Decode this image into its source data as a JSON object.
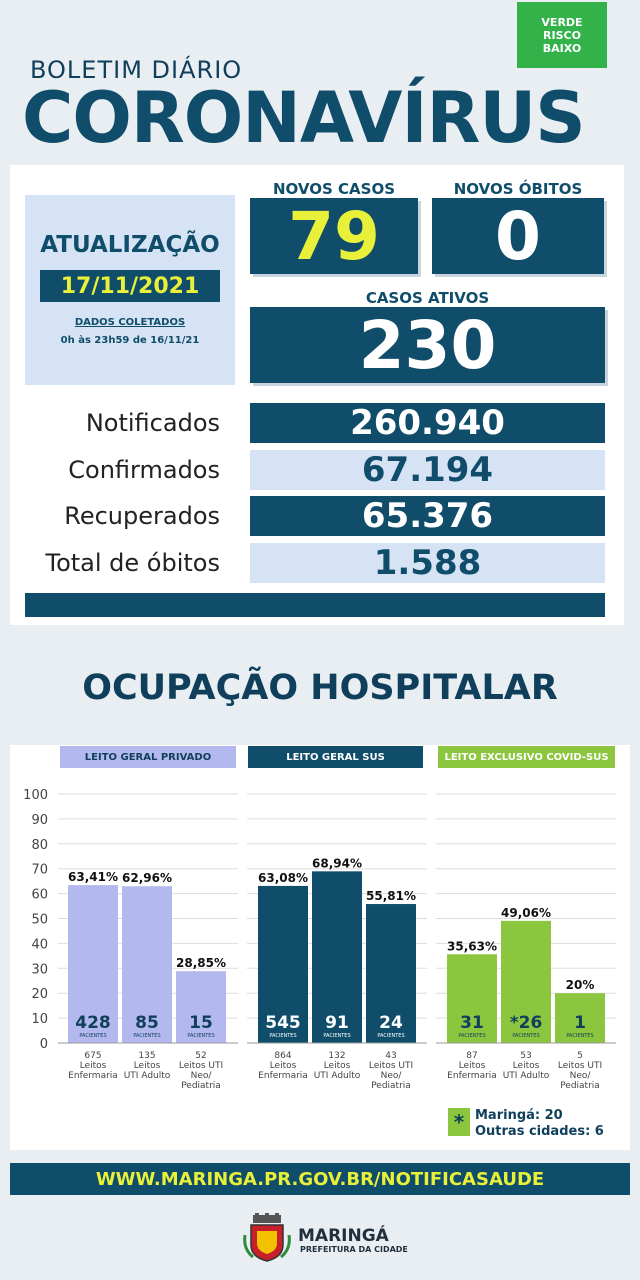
{
  "risk_badge": {
    "line1": "VERDE",
    "line2": "RISCO",
    "line3": "BAIXO",
    "color": "#33b24a"
  },
  "header": {
    "subtitle": "BOLETIM DIÁRIO",
    "title": "CORONAVÍRUS"
  },
  "update": {
    "label": "ATUALIZAÇÃO",
    "date": "17/11/2021",
    "collected_label": "DADOS COLETADOS",
    "collected_range": "0h às 23h59 de 16/11/21"
  },
  "stats": {
    "novos_casos_label": "NOVOS CASOS",
    "novos_casos": "79",
    "novos_obitos_label": "NOVOS ÓBITOS",
    "novos_obitos": "0",
    "casos_ativos_label": "CASOS ATIVOS",
    "casos_ativos": "230"
  },
  "summary_rows": [
    {
      "label": "Notificados",
      "value": "260.940"
    },
    {
      "label": "Confirmados",
      "value": "67.194"
    },
    {
      "label": "Recuperados",
      "value": "65.376"
    },
    {
      "label": "Total de óbitos",
      "value": "1.588"
    }
  ],
  "hospital_title": "OCUPAÇÃO HOSPITALAR",
  "colors": {
    "dark_blue": "#0f4d6b",
    "light_blue": "#d5e3f5",
    "yellow": "#e8f03a",
    "lavender": "#b3b9ee",
    "green": "#8cc63f"
  },
  "chart_data": [
    {
      "type": "bar",
      "title": "LEITO GERAL PRIVADO",
      "ylim": [
        0,
        100
      ],
      "yticks": [
        "0",
        "10",
        "20",
        "30",
        "40",
        "50",
        "60",
        "70",
        "80",
        "90",
        "100"
      ],
      "categories": [
        "675\nLeitos\nEnfermaria",
        "135\nLeitos\nUTI Adulto",
        "52\nLeitos UTI\nNeo/\nPediatria"
      ],
      "values": [
        63.41,
        62.96,
        28.85
      ],
      "value_labels": [
        "63,41%",
        "62,96%",
        "28,85%"
      ],
      "patients": [
        "428",
        "85",
        "15"
      ],
      "patients_label": "PACIENTES",
      "bar_color": "#b3b9ee",
      "header_color": "#b3b9ee",
      "header_text_color": "#0f3f5a",
      "patient_text_color": "#0f3f5a"
    },
    {
      "type": "bar",
      "title": "LEITO GERAL SUS",
      "ylim": [
        0,
        100
      ],
      "categories": [
        "864\nLeitos\nEnfermaria",
        "132\nLeitos\nUTI Adulto",
        "43\nLeitos UTI\nNeo/\nPediatria"
      ],
      "values": [
        63.08,
        68.94,
        55.81
      ],
      "value_labels": [
        "63,08%",
        "68,94%",
        "55,81%"
      ],
      "patients": [
        "545",
        "91",
        "24"
      ],
      "patients_label": "PACIENTES",
      "bar_color": "#0f4d6b",
      "header_color": "#0f4d6b",
      "header_text_color": "#ffffff",
      "patient_text_color": "#ffffff"
    },
    {
      "type": "bar",
      "title": "LEITO EXCLUSIVO COVID-SUS",
      "ylim": [
        0,
        100
      ],
      "categories": [
        "87\nLeitos\nEnfermaria",
        "53\nLeitos\nUTI Adulto",
        "5\nLeitos UTI\nNeo/\nPediatria"
      ],
      "values": [
        35.63,
        49.06,
        20
      ],
      "value_labels": [
        "35,63%",
        "49,06%",
        "20%"
      ],
      "patients": [
        "31",
        "*26",
        "1"
      ],
      "patients_label": "PACIENTES",
      "bar_color": "#8cc63f",
      "header_color": "#8cc63f",
      "header_text_color": "#ffffff",
      "patient_text_color": "#0f3f5a"
    }
  ],
  "legend": {
    "line1": "Maringá: 20",
    "line2": "Outras cidades: 6",
    "symbol": "*"
  },
  "footer": {
    "url": "WWW.MARINGA.PR.GOV.BR/NOTIFICASAUDE",
    "city": "MARINGÁ",
    "prefeitura": "PREFEITURA DA CIDADE"
  }
}
